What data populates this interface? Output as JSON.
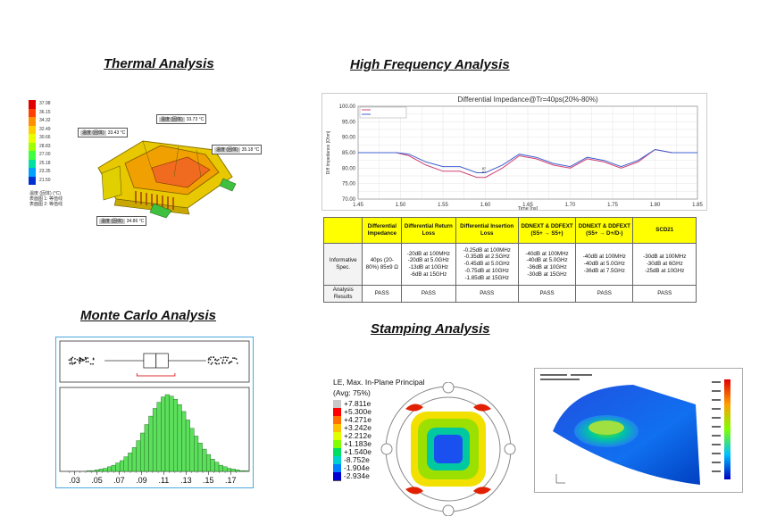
{
  "sections": {
    "thermal": "Thermal Analysis",
    "highfreq": "High Frequency Analysis",
    "montecarlo": "Monte Carlo Analysis",
    "stamping": "Stamping Analysis"
  },
  "thermal": {
    "legend_values": [
      "37.98",
      "36.15",
      "34.32",
      "32.49",
      "30.66",
      "28.83",
      "27.00",
      "25.18",
      "23.35",
      "21.50"
    ],
    "legend_colors": [
      "#e00000",
      "#ff4000",
      "#ff9000",
      "#ffd000",
      "#e8ff00",
      "#a0ff00",
      "#40ff40",
      "#00e0a0",
      "#00a0ff",
      "#0030d0"
    ],
    "legend_note1": "温度 (固体) (°C)",
    "legend_note2": "表面图 1: 等值线",
    "legend_note3": "表面图 2: 等值线",
    "callout_key": "温度 (固体)",
    "callouts": [
      "33.43 °C",
      "33.73 °C",
      "35.18 °C",
      "34.86 °C"
    ]
  },
  "chart_data": {
    "type": "line",
    "title": "Differential Impedance@Tr=40ps(20%-80%)",
    "xlabel": "Time [ns]",
    "ylabel": "Diff Impedance [Ohm]",
    "xlim": [
      1.45,
      1.85
    ],
    "ylim": [
      70,
      100
    ],
    "xticks": [
      "1.45",
      "1.50",
      "1.55",
      "1.60",
      "1.65",
      "1.70",
      "1.75",
      "1.80",
      "1.85"
    ],
    "yticks": [
      "100.00",
      "95.00",
      "90.00",
      "85.00",
      "80.00",
      "75.00",
      "70.00"
    ],
    "series": [
      {
        "color": "#d04070",
        "x": [
          1.45,
          1.495,
          1.51,
          1.53,
          1.55,
          1.57,
          1.59,
          1.6,
          1.62,
          1.64,
          1.66,
          1.68,
          1.7,
          1.72,
          1.74,
          1.76,
          1.78,
          1.8,
          1.82,
          1.85
        ],
        "y": [
          85,
          85,
          84,
          81,
          79,
          79,
          77,
          77,
          80,
          84,
          83,
          81,
          80,
          83,
          82,
          80,
          82,
          86,
          85,
          85
        ]
      },
      {
        "color": "#4060d0",
        "x": [
          1.45,
          1.495,
          1.51,
          1.53,
          1.55,
          1.57,
          1.59,
          1.6,
          1.62,
          1.64,
          1.66,
          1.68,
          1.7,
          1.72,
          1.74,
          1.76,
          1.78,
          1.8,
          1.82,
          1.85
        ],
        "y": [
          85,
          85,
          84.5,
          82,
          80.5,
          80.5,
          78.5,
          78.5,
          81,
          84.5,
          83.5,
          81.5,
          80.5,
          83.5,
          82.5,
          80.5,
          82.5,
          86,
          85,
          85
        ]
      }
    ],
    "markers": [
      "87",
      "87"
    ]
  },
  "spec_table": {
    "headers": [
      "",
      "Differential Impedance",
      "Differential Return Loss",
      "Differential Insertion Loss",
      "DDNEXT & DDFEXT (S5+ → S5+)",
      "DDNEXT & DDFEXT (S5+ → D+/D-)",
      "SCD21"
    ],
    "rows": [
      [
        "Informative Spec.",
        "40ps (20-80%) 85±9 Ω",
        "-20dB at 100MHz\n-20dB at 5.0GHz\n-13dB at 10GHz\n-6dB at 15GHz",
        "-0.25dB at 100MHz\n-0.35dB at 2.5GHz\n-0.45dB at 5.0GHz\n-0.75dB at 10GHz\n-1.85dB at 15GHz",
        "-40dB at 100MHz\n-40dB at 5.0GHz\n-36dB at 10GHz\n-30dB at 15GHz",
        "-40dB at 100MHz\n-40dB at 5.0GHz\n-36dB at 7.5GHz",
        "-30dB at 100MHz\n-30dB at 6GHz\n-25dB at 10GHz"
      ],
      [
        "Analysis Results",
        "PASS",
        "PASS",
        "PASS",
        "PASS",
        "PASS",
        "PASS"
      ]
    ]
  },
  "montecarlo": {
    "chart_type": "histogram",
    "xticks": [
      ".03",
      ".05",
      ".07",
      ".09",
      ".11",
      ".13",
      ".15",
      ".17"
    ],
    "xlim": [
      0.02,
      0.185
    ],
    "bin_start": 0.041,
    "bin_width": 0.0037,
    "counts": [
      1,
      1,
      2,
      3,
      4,
      6,
      8,
      11,
      14,
      19,
      24,
      31,
      40,
      50,
      61,
      72,
      82,
      90,
      97,
      100,
      98,
      94,
      87,
      78,
      67,
      56,
      46,
      37,
      29,
      22,
      16,
      12,
      8,
      6,
      4,
      3,
      2,
      1,
      1
    ],
    "box": {
      "whisker_low": 0.057,
      "q1": 0.092,
      "median": 0.103,
      "q3": 0.114,
      "whisker_high": 0.148
    }
  },
  "stamping": {
    "legend_title1": "LE, Max. In-Plane Principal",
    "legend_title2": "(Avg: 75%)",
    "legend_values": [
      "+7.811e",
      "+5.300e",
      "+4.271e",
      "+3.242e",
      "+2.212e",
      "+1.183e",
      "+1.540e",
      "-8.752e",
      "-1.904e",
      "-2.934e"
    ],
    "legend_colors": [
      "#c8c8c8",
      "#ff0000",
      "#ff7000",
      "#ffc000",
      "#e0ff00",
      "#80ff00",
      "#00e060",
      "#00d0d0",
      "#0080ff",
      "#0000d0"
    ]
  }
}
